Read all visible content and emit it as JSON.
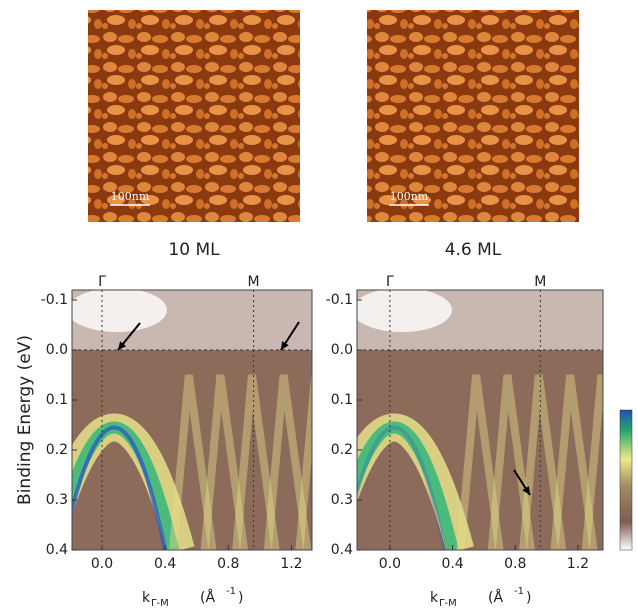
{
  "figure": {
    "afm_panels": [
      {
        "label": "10 ML",
        "scale_bar": "100nm"
      },
      {
        "label": "4.6 ML",
        "scale_bar": "100nm"
      }
    ],
    "arpes_panels": [
      {
        "ylabel": "Binding Energy  (eV)",
        "xlabel": {
          "main": "k",
          "sub": "Γ-M",
          "unit": "(Å",
          "unit_exp": "-1",
          "unit_close": ")"
        },
        "xlim": [
          -0.19,
          1.33
        ],
        "ylim": [
          -0.12,
          0.4
        ],
        "xticks": [
          {
            "value": 0,
            "label": "0.0"
          },
          0.4,
          0.8,
          1.2
        ],
        "yticks": [
          -0.1,
          {
            "value": 0,
            "label": "0.0"
          },
          0.1,
          0.2,
          0.3,
          0.4
        ],
        "points": [
          {
            "label": "Γ",
            "x": 0
          },
          {
            "label": "M",
            "x": 0.96
          }
        ],
        "fermi": 0
      },
      {
        "xlabel": {
          "main": "k",
          "sub": "Γ-M",
          "unit": "(Å",
          "unit_exp": "-1",
          "unit_close": ")"
        },
        "xlim": [
          -0.21,
          1.36
        ],
        "ylim": [
          -0.12,
          0.4
        ],
        "xticks": [
          {
            "value": 0,
            "label": "0.0"
          },
          0.4,
          0.8,
          1.2
        ],
        "yticks": [
          -0.1,
          {
            "value": 0,
            "label": "0.0"
          },
          0.1,
          0.2,
          0.3,
          0.4
        ],
        "points": [
          {
            "label": "Γ",
            "x": 0
          },
          {
            "label": "M",
            "x": 0.96
          }
        ],
        "fermi": 0
      }
    ]
  }
}
